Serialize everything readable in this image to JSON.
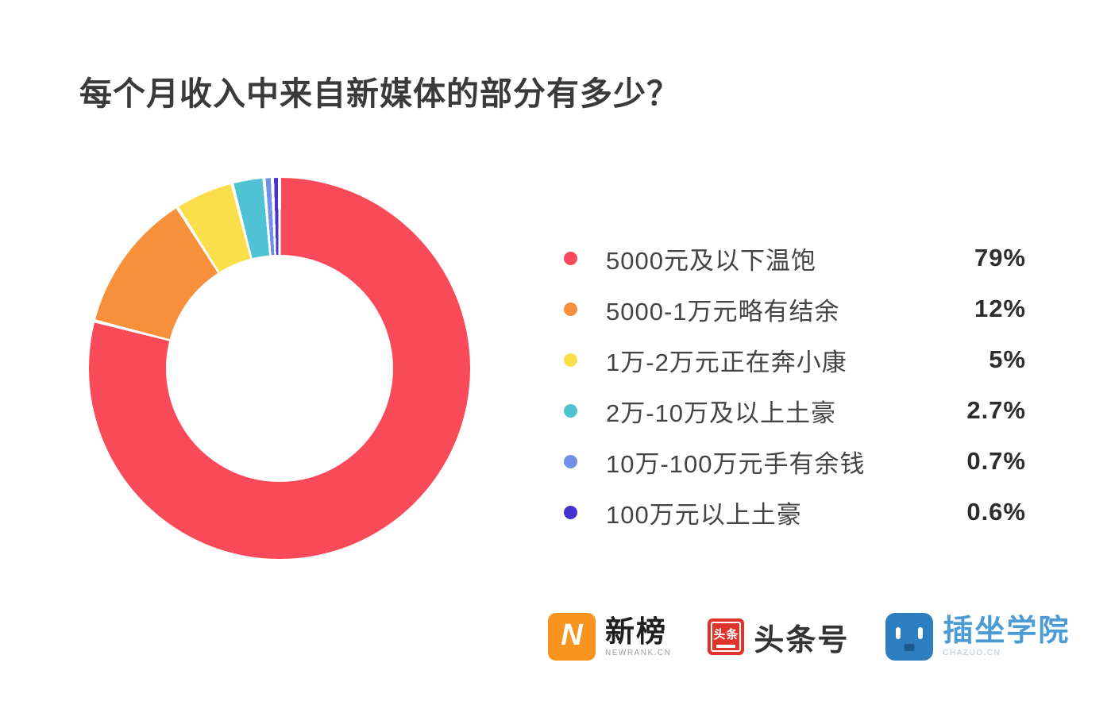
{
  "title": "每个月收入中来自新媒体的部分有多少？",
  "chart_data": {
    "type": "pie",
    "donut": true,
    "start_angle_deg": 0,
    "direction": "clockwise",
    "inner_radius_ratio": 0.6,
    "legend_position": "right",
    "title": "每个月收入中来自新媒体的部分有多少？",
    "labels": [
      "5000元及以下温饱",
      "5000-1万元略有结余",
      "1万-2万元正在奔小康",
      "2万-10万及以上土豪",
      "10万-100万元手有余钱",
      "100万元以上土豪"
    ],
    "values": [
      79,
      12,
      5,
      2.7,
      0.7,
      0.6
    ],
    "value_labels": [
      "79%",
      "12%",
      "5%",
      "2.7%",
      "0.7%",
      "0.6%"
    ],
    "colors": [
      "#f94a5a",
      "#f7903b",
      "#fbde4b",
      "#4fc3d4",
      "#7191e8",
      "#4634cf"
    ]
  },
  "legend": {
    "items": [
      {
        "label": "5000元及以下温饱",
        "value": "79%"
      },
      {
        "label": "5000-1万元略有结余",
        "value": "12%"
      },
      {
        "label": "1万-2万元正在奔小康",
        "value": "5%"
      },
      {
        "label": "2万-10万及以上土豪",
        "value": "2.7%"
      },
      {
        "label": "10万-100万元手有余钱",
        "value": "0.7%"
      },
      {
        "label": "100万元以上土豪",
        "value": "0.6%"
      }
    ]
  },
  "footer": {
    "newrank": {
      "badge_letter": "N",
      "name": "新榜",
      "sub": "NEWRANK.CN",
      "badge_color": "#f7941e"
    },
    "toutiao": {
      "badge_text": "头条",
      "name": "头条号",
      "badge_color": "#e0332c"
    },
    "chazuo": {
      "name": "插坐学院",
      "sub": "CHAZUO.CN",
      "badge_color": "#2e7fc0"
    }
  }
}
